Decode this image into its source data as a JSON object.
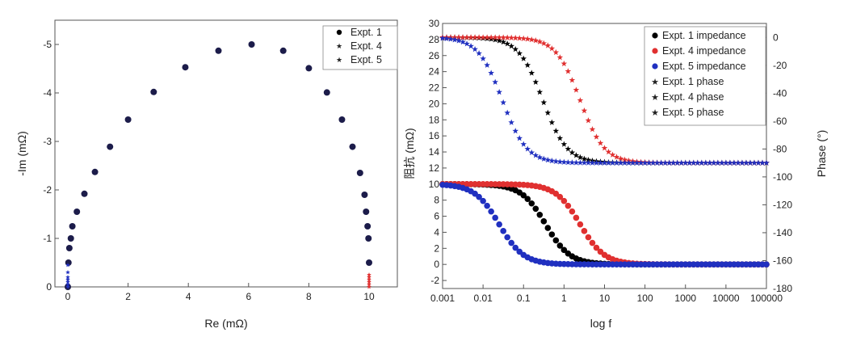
{
  "chart_data": [
    {
      "type": "scatter",
      "title": "",
      "xlabel": "Re (mΩ)",
      "ylabel": "-Im  (mΩ)",
      "xlim": [
        0,
        11
      ],
      "ylim": [
        0,
        -5.5
      ],
      "x_ticks": [
        "0",
        "2",
        "4",
        "6",
        "8",
        "10"
      ],
      "y_ticks": [
        "0",
        "-1",
        "-2",
        "-3",
        "-4",
        "-5"
      ],
      "legend_position": "top-right",
      "series": [
        {
          "name": "Expt. 1",
          "marker": "circle",
          "color": "#000000",
          "x": [
            0.0,
            0.02,
            0.05,
            0.1,
            0.15,
            0.3,
            0.55,
            0.9,
            1.4,
            2.0,
            2.85,
            3.9,
            5.0,
            6.1,
            7.15,
            8.0,
            8.6,
            9.1,
            9.45,
            9.7,
            9.85,
            9.9,
            9.95,
            9.98,
            10.0
          ],
          "y": [
            0.0,
            -0.5,
            -0.8,
            -1.0,
            -1.25,
            -1.55,
            -1.92,
            -2.37,
            -2.89,
            -3.45,
            -4.02,
            -4.53,
            -4.87,
            -5.0,
            -4.87,
            -4.51,
            -4.01,
            -3.45,
            -2.89,
            -2.35,
            -1.9,
            -1.55,
            -1.25,
            -1.0,
            -0.5
          ]
        },
        {
          "name": "Expt. 4",
          "marker": "star",
          "color": "#e03030",
          "x": [
            10.0,
            10.0,
            10.0,
            10.0,
            10.0,
            10.0
          ],
          "y": [
            0.0,
            -0.05,
            -0.1,
            -0.15,
            -0.2,
            -0.25
          ]
        },
        {
          "name": "Expt. 5",
          "marker": "star",
          "color": "#2030c0",
          "x": [
            0.0,
            0.0,
            0.0,
            0.0,
            0.0,
            0.0,
            0.0
          ],
          "y": [
            0.0,
            -0.05,
            -0.1,
            -0.15,
            -0.2,
            -0.3,
            -0.45
          ]
        }
      ],
      "colors": {
        "expt1": "#000000",
        "expt4": "#e03030",
        "expt5": "#2030c0",
        "nyquist_fill": "#1c1c4a"
      }
    },
    {
      "type": "line",
      "title": "",
      "xlabel": "log f",
      "ylabel_left": "阻抗 (mΩ)",
      "ylabel_right": "Phase    (°)",
      "x_scale": "log",
      "xlim": [
        0.001,
        100000
      ],
      "ylim_left": [
        -3,
        30
      ],
      "ylim_right": [
        -180,
        10
      ],
      "x_ticks": [
        "0.001",
        "0.01",
        "0.1",
        "1",
        "10",
        "100",
        "1000",
        "10000",
        "100000"
      ],
      "y_left_ticks": [
        "-2",
        "0",
        "2",
        "4",
        "6",
        "8",
        "10",
        "12",
        "14",
        "16",
        "18",
        "20",
        "22",
        "24",
        "26",
        "28",
        "30"
      ],
      "y_right_ticks": [
        "0",
        "-20",
        "-40",
        "-60",
        "-80",
        "-100",
        "-120",
        "-140",
        "-160",
        "-180"
      ],
      "legend_position": "top-right",
      "series": [
        {
          "name": "Expt. 1 impedance",
          "marker": "circle",
          "color": "#000000",
          "axis": "left",
          "model": "logistic",
          "high": 10,
          "low": 0,
          "midpoint_f": 0.35,
          "width_decades": 0.3
        },
        {
          "name": "Expt. 4 impedance",
          "marker": "circle",
          "color": "#e03030",
          "axis": "left",
          "model": "logistic",
          "high": 10,
          "low": 0,
          "midpoint_f": 2.5,
          "width_decades": 0.3
        },
        {
          "name": "Expt. 5 impedance",
          "marker": "circle",
          "color": "#2030c0",
          "axis": "left",
          "model": "logistic",
          "high": 10,
          "low": 0,
          "midpoint_f": 0.025,
          "width_decades": 0.3
        },
        {
          "name": "Expt. 1 phase",
          "marker": "star",
          "color": "#000000",
          "axis": "right",
          "model": "logistic",
          "high": 0,
          "low": -90,
          "midpoint_f": 0.3,
          "width_decades": 0.3
        },
        {
          "name": "Expt. 4 phase",
          "marker": "star",
          "color": "#e03030",
          "axis": "right",
          "model": "logistic",
          "high": 0,
          "low": -90,
          "midpoint_f": 2.5,
          "width_decades": 0.3
        },
        {
          "name": "Expt. 5 phase",
          "marker": "star",
          "color": "#2030c0",
          "axis": "right",
          "model": "logistic",
          "high": 0,
          "low": -90,
          "midpoint_f": 0.03,
          "width_decades": 0.3
        }
      ],
      "points_per_decade": 10
    }
  ]
}
